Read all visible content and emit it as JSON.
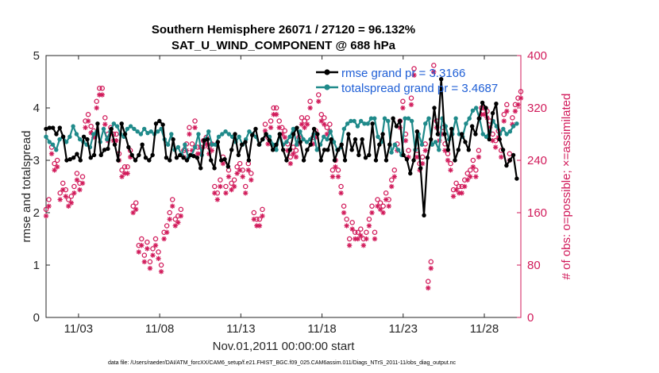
{
  "chart_data": {
    "type": "line",
    "title": "Southern Hemisphere 26071 / 27120 = 96.132%",
    "subtitle": "SAT_U_WIND_COMPONENT @ 688 hPa",
    "xlabel": "Nov.01,2011 00:00:00 start",
    "ylabel": "rmse and totalspread",
    "y2label": "# of obs: o=possible; ×=assimilated",
    "footnote": "data file: /Users/raeder/DAI/ATM_forcXX/CAM6_setup/f.e21.FHIST_BGC.f09_025.CAM6assim.011/Diags_NTrS_2011-11/obs_diag_output.nc",
    "xlim": [
      1.0,
      30.25
    ],
    "ylim": [
      0,
      5
    ],
    "y2lim": [
      0,
      400
    ],
    "xticks": [
      3,
      8,
      13,
      18,
      23,
      28
    ],
    "xtick_labels": [
      "11/03",
      "11/08",
      "11/13",
      "11/18",
      "11/23",
      "11/28"
    ],
    "yticks": [
      "0",
      "1",
      "2",
      "3",
      "4",
      "5"
    ],
    "y2ticks": [
      "0",
      "80",
      "160",
      "240",
      "320",
      "400"
    ],
    "grid": false,
    "legend_position": "top-right",
    "colors": {
      "rmse": "#000000",
      "spread": "#1f8a8a",
      "obs": "#d11a5a",
      "legend_text": "#1f5fd6"
    },
    "series": [
      {
        "name": "rmse grand pr = 3.3166",
        "color": "#000000",
        "marker": "circle",
        "values": [
          3.6,
          3.62,
          3.62,
          3.5,
          3.62,
          3.45,
          3.0,
          3.02,
          3.05,
          3.12,
          3.0,
          3.45,
          3.4,
          3.05,
          3.1,
          3.7,
          3.1,
          3.2,
          3.22,
          3.6,
          3.3,
          3.0,
          3.7,
          3.5,
          3.25,
          3.1,
          3.0,
          3.1,
          3.3,
          3.05,
          3.0,
          3.1,
          3.7,
          3.75,
          3.68,
          3.05,
          3.0,
          3.4,
          3.05,
          3.1,
          3.05,
          3.0,
          3.1,
          3.08,
          3.05,
          2.85,
          3.38,
          3.4,
          3.0,
          2.85,
          3.35,
          3.0,
          3.02,
          2.88,
          3.2,
          3.5,
          3.1,
          3.3,
          3.35,
          3.0,
          3.48,
          3.6,
          3.3,
          3.4,
          3.5,
          3.38,
          3.2,
          3.3,
          3.5,
          3.2,
          3.0,
          3.2,
          3.5,
          3.62,
          3.35,
          3.0,
          3.2,
          3.3,
          3.6,
          3.5,
          3.0,
          3.2,
          3.2,
          3.4,
          3.0,
          3.2,
          3.3,
          3.0,
          3.5,
          3.2,
          3.4,
          3.1,
          3.4,
          3.05,
          3.1,
          3.7,
          3.0,
          3.3,
          3.5,
          3.0,
          3.3,
          3.8,
          3.65,
          3.75,
          3.1,
          3.02,
          2.75,
          3.0,
          3.55,
          2.85,
          1.95,
          3.05,
          3.4,
          4.0,
          3.5,
          4.55,
          3.5,
          3.2,
          3.6,
          3.0,
          3.2,
          3.5,
          3.35,
          3.2,
          3.65,
          3.5,
          3.8,
          4.1,
          4.0,
          3.4,
          3.9,
          4.08,
          3.4,
          3.2,
          2.9,
          3.0,
          3.1,
          2.65
        ]
      },
      {
        "name": "totalspread grand pr = 3.4687",
        "color": "#1f8a8a",
        "marker": "circle",
        "values": [
          3.45,
          3.35,
          3.3,
          3.2,
          3.4,
          3.45,
          3.35,
          3.45,
          3.65,
          3.5,
          3.4,
          3.35,
          3.3,
          3.25,
          3.5,
          3.55,
          3.35,
          3.6,
          3.4,
          3.55,
          3.7,
          3.65,
          3.5,
          3.45,
          3.6,
          3.65,
          3.6,
          3.55,
          3.5,
          3.6,
          3.52,
          3.55,
          3.5,
          3.55,
          3.6,
          3.4,
          3.3,
          3.5,
          3.2,
          3.25,
          3.1,
          3.3,
          3.05,
          3.1,
          3.25,
          3.5,
          3.1,
          3.4,
          3.55,
          3.3,
          3.3,
          3.45,
          3.5,
          3.55,
          3.5,
          3.45,
          3.35,
          3.45,
          3.3,
          3.4,
          3.55,
          3.5,
          3.45,
          3.3,
          3.4,
          3.5,
          3.45,
          3.3,
          3.2,
          3.5,
          3.3,
          3.35,
          3.45,
          3.6,
          3.3,
          3.55,
          3.4,
          3.35,
          3.4,
          3.5,
          3.2,
          3.3,
          3.45,
          3.4,
          3.55,
          3.35,
          3.2,
          3.25,
          3.6,
          3.7,
          3.75,
          3.75,
          3.65,
          3.75,
          3.7,
          3.7,
          3.8,
          3.8,
          3.45,
          3.35,
          3.8,
          3.75,
          3.15,
          3.3,
          3.2,
          3.1,
          3.8,
          3.8,
          3.75,
          3.2,
          3.5,
          3.3,
          3.7,
          3.8,
          3.3,
          3.35,
          3.2,
          3.8,
          3.65,
          3.4,
          3.5,
          3.8,
          3.5,
          3.45,
          3.7,
          3.8,
          3.95,
          4.0,
          3.8,
          3.5,
          3.45,
          3.55,
          3.75,
          3.65,
          3.5,
          3.6,
          3.5,
          3.55,
          3.65,
          3.7
        ]
      },
      {
        "name": "possible",
        "color": "#d11a5a",
        "marker": "o",
        "values": [
          165,
          180,
          260,
          235,
          240,
          190,
          205,
          195,
          180,
          185,
          200,
          220,
          205,
          215,
          300,
          310,
          292,
          285,
          330,
          350,
          350,
          305,
          280,
          290,
          280,
          280,
          250,
          225,
          230,
          230,
          255,
          170,
          175,
          110,
          120,
          95,
          115,
          85,
          105,
          120,
          100,
          80,
          130,
          140,
          160,
          180,
          150,
          155,
          165,
          255,
          265,
          290,
          265,
          300,
          260,
          260,
          270,
          275,
          260,
          265,
          200,
          190,
          210,
          245,
          200,
          225,
          205,
          210,
          230,
          235,
          225,
          200,
          235,
          220,
          160,
          150,
          150,
          165,
          295,
          275,
          300,
          320,
          320,
          300,
          290,
          285,
          265,
          245,
          260,
          255,
          275,
          305,
          300,
          305,
          330,
          275,
          285,
          340,
          310,
          305,
          290,
          295,
          225,
          240,
          225,
          200,
          170,
          150,
          120,
          145,
          130,
          130,
          135,
          120,
          130,
          150,
          170,
          130,
          180,
          175,
          170,
          190,
          180,
          210,
          225,
          265,
          300,
          330,
          280,
          255,
          335,
          380,
          255,
          235,
          245,
          265,
          55,
          85,
          385,
          300,
          280,
          290,
          265,
          250,
          235,
          195,
          205,
          200,
          200,
          210,
          220,
          225,
          240,
          225,
          255,
          320,
          320,
          315,
          300,
          280,
          270,
          285,
          255,
          310,
          325,
          250,
          305,
          325,
          335,
          345
        ]
      },
      {
        "name": "assimilated",
        "color": "#d11a5a",
        "marker": "x",
        "values": [
          155,
          170,
          250,
          225,
          230,
          180,
          195,
          185,
          170,
          175,
          190,
          210,
          195,
          205,
          290,
          300,
          282,
          275,
          320,
          340,
          340,
          295,
          270,
          280,
          270,
          270,
          240,
          215,
          220,
          220,
          245,
          160,
          165,
          100,
          110,
          85,
          105,
          75,
          95,
          110,
          90,
          70,
          120,
          130,
          150,
          170,
          140,
          145,
          155,
          245,
          255,
          280,
          255,
          290,
          250,
          250,
          260,
          265,
          250,
          255,
          190,
          180,
          200,
          235,
          190,
          215,
          195,
          200,
          220,
          225,
          215,
          190,
          225,
          210,
          150,
          140,
          140,
          155,
          285,
          265,
          290,
          310,
          310,
          290,
          280,
          275,
          255,
          235,
          250,
          245,
          265,
          295,
          290,
          295,
          320,
          265,
          275,
          330,
          300,
          295,
          280,
          285,
          215,
          230,
          215,
          190,
          160,
          140,
          110,
          135,
          120,
          120,
          125,
          110,
          120,
          140,
          160,
          120,
          170,
          165,
          160,
          180,
          170,
          200,
          215,
          255,
          290,
          320,
          270,
          245,
          325,
          370,
          245,
          225,
          235,
          255,
          45,
          75,
          375,
          290,
          270,
          280,
          255,
          240,
          225,
          185,
          195,
          190,
          190,
          200,
          210,
          215,
          230,
          215,
          245,
          310,
          310,
          305,
          290,
          270,
          260,
          275,
          245,
          300,
          315,
          240,
          295,
          315,
          325,
          335
        ]
      }
    ]
  }
}
